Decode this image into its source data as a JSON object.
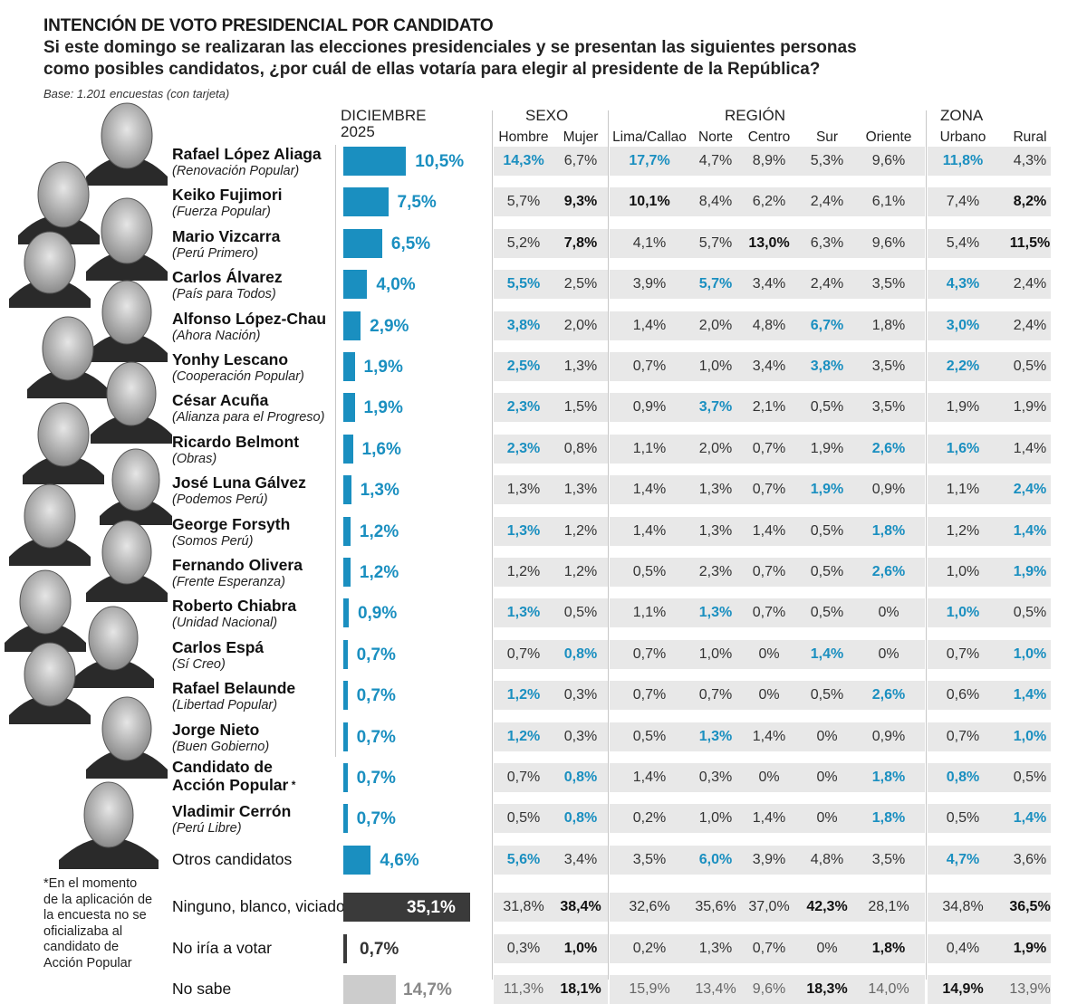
{
  "header": {
    "title": "INTENCIÓN DE VOTO PRESIDENCIAL POR CANDIDATO",
    "subtitle_line1": "Si este domingo se realizaran las elecciones presidenciales y se presentan las siguientes personas",
    "subtitle_line2": "como posibles candidatos, ¿por cuál de ellas votaría para elegir al presidente de la República?",
    "base": "Base: 1.201 encuestas (con tarjeta)"
  },
  "columns": {
    "total_label_1": "DICIEMBRE",
    "total_label_2": "2025",
    "sexo": "SEXO",
    "region": "REGIÓN",
    "zona": "ZONA",
    "sub": [
      "Hombre",
      "Mujer",
      "Lima/Callao",
      "Norte",
      "Centro",
      "Sur",
      "Oriente",
      "Urbano",
      "Rural"
    ]
  },
  "footnote": [
    "*En el momento",
    "de la aplicación de",
    "la encuesta no se",
    "oficializaba al",
    "candidato de",
    "Acción Popular"
  ],
  "colors": {
    "accent": "#1a8fc0",
    "dark": "#3a3a3a",
    "light": "#cccccc",
    "stripe": "#e8e8e8"
  },
  "chart_data": {
    "type": "table",
    "title": "INTENCIÓN DE VOTO PRESIDENCIAL POR CANDIDATO",
    "series_order": [
      "DICIEMBRE 2025",
      "Hombre",
      "Mujer",
      "Lima/Callao",
      "Norte",
      "Centro",
      "Sur",
      "Oriente",
      "Urbano",
      "Rural"
    ],
    "rows": [
      {
        "name": "Rafael López Aliaga",
        "party": "(Renovación Popular)",
        "total": 10.5,
        "total_label": "10,5%",
        "cells": [
          "14,3%",
          "6,7%",
          "17,7%",
          "4,7%",
          "8,9%",
          "5,3%",
          "9,6%",
          "11,8%",
          "4,3%"
        ],
        "hl": [
          0,
          2,
          7
        ]
      },
      {
        "name": "Keiko Fujimori",
        "party": "(Fuerza Popular)",
        "total": 7.5,
        "total_label": "7,5%",
        "cells": [
          "5,7%",
          "9,3%",
          "10,1%",
          "8,4%",
          "6,2%",
          "2,4%",
          "6,1%",
          "7,4%",
          "8,2%"
        ],
        "bk": [
          1,
          2,
          8
        ]
      },
      {
        "name": "Mario Vizcarra",
        "party": "(Perú Primero)",
        "total": 6.5,
        "total_label": "6,5%",
        "cells": [
          "5,2%",
          "7,8%",
          "4,1%",
          "5,7%",
          "13,0%",
          "6,3%",
          "9,6%",
          "5,4%",
          "11,5%"
        ],
        "bk": [
          1,
          4,
          8
        ]
      },
      {
        "name": "Carlos Álvarez",
        "party": "(País para Todos)",
        "total": 4.0,
        "total_label": "4,0%",
        "cells": [
          "5,5%",
          "2,5%",
          "3,9%",
          "5,7%",
          "3,4%",
          "2,4%",
          "3,5%",
          "4,3%",
          "2,4%"
        ],
        "hl": [
          0,
          3,
          7
        ]
      },
      {
        "name": "Alfonso López-Chau",
        "party": "(Ahora Nación)",
        "total": 2.9,
        "total_label": "2,9%",
        "cells": [
          "3,8%",
          "2,0%",
          "1,4%",
          "2,0%",
          "4,8%",
          "6,7%",
          "1,8%",
          "3,0%",
          "2,4%"
        ],
        "hl": [
          0,
          5,
          7
        ]
      },
      {
        "name": "Yonhy Lescano",
        "party": "(Cooperación Popular)",
        "total": 1.9,
        "total_label": "1,9%",
        "cells": [
          "2,5%",
          "1,3%",
          "0,7%",
          "1,0%",
          "3,4%",
          "3,8%",
          "3,5%",
          "2,2%",
          "0,5%"
        ],
        "hl": [
          0,
          5,
          7
        ]
      },
      {
        "name": "César Acuña",
        "party": "(Alianza para el Progreso)",
        "total": 1.9,
        "total_label": "1,9%",
        "cells": [
          "2,3%",
          "1,5%",
          "0,9%",
          "3,7%",
          "2,1%",
          "0,5%",
          "3,5%",
          "1,9%",
          "1,9%"
        ],
        "hl": [
          0,
          3
        ]
      },
      {
        "name": "Ricardo Belmont",
        "party": "(Obras)",
        "total": 1.6,
        "total_label": "1,6%",
        "cells": [
          "2,3%",
          "0,8%",
          "1,1%",
          "2,0%",
          "0,7%",
          "1,9%",
          "2,6%",
          "1,6%",
          "1,4%"
        ],
        "hl": [
          0,
          6,
          7
        ]
      },
      {
        "name": "José Luna Gálvez",
        "party": "(Podemos Perú)",
        "total": 1.3,
        "total_label": "1,3%",
        "cells": [
          "1,3%",
          "1,3%",
          "1,4%",
          "1,3%",
          "0,7%",
          "1,9%",
          "0,9%",
          "1,1%",
          "2,4%"
        ],
        "hl": [
          5,
          8
        ]
      },
      {
        "name": "George Forsyth",
        "party": "(Somos Perú)",
        "total": 1.2,
        "total_label": "1,2%",
        "cells": [
          "1,3%",
          "1,2%",
          "1,4%",
          "1,3%",
          "1,4%",
          "0,5%",
          "1,8%",
          "1,2%",
          "1,4%"
        ],
        "hl": [
          0,
          6,
          8
        ]
      },
      {
        "name": "Fernando Olivera",
        "party": "(Frente Esperanza)",
        "total": 1.2,
        "total_label": "1,2%",
        "cells": [
          "1,2%",
          "1,2%",
          "0,5%",
          "2,3%",
          "0,7%",
          "0,5%",
          "2,6%",
          "1,0%",
          "1,9%"
        ],
        "hl": [
          6,
          8
        ]
      },
      {
        "name": "Roberto Chiabra",
        "party": "(Unidad Nacional)",
        "total": 0.9,
        "total_label": "0,9%",
        "cells": [
          "1,3%",
          "0,5%",
          "1,1%",
          "1,3%",
          "0,7%",
          "0,5%",
          "0%",
          "1,0%",
          "0,5%"
        ],
        "hl": [
          0,
          3,
          7
        ]
      },
      {
        "name": "Carlos Espá",
        "party": "(Sí Creo)",
        "total": 0.7,
        "total_label": "0,7%",
        "cells": [
          "0,7%",
          "0,8%",
          "0,7%",
          "1,0%",
          "0%",
          "1,4%",
          "0%",
          "0,7%",
          "1,0%"
        ],
        "hl": [
          1,
          5,
          8
        ]
      },
      {
        "name": "Rafael Belaunde",
        "party": "(Libertad Popular)",
        "total": 0.7,
        "total_label": "0,7%",
        "cells": [
          "1,2%",
          "0,3%",
          "0,7%",
          "0,7%",
          "0%",
          "0,5%",
          "2,6%",
          "0,6%",
          "1,4%"
        ],
        "hl": [
          0,
          6,
          8
        ]
      },
      {
        "name": "Jorge Nieto",
        "party": "(Buen Gobierno)",
        "total": 0.7,
        "total_label": "0,7%",
        "cells": [
          "1,2%",
          "0,3%",
          "0,5%",
          "1,3%",
          "1,4%",
          "0%",
          "0,9%",
          "0,7%",
          "1,0%"
        ],
        "hl": [
          0,
          3,
          8
        ]
      },
      {
        "name": "Candidato de",
        "name2": "Acción Popular",
        "star": "*",
        "party": "",
        "total": 0.7,
        "total_label": "0,7%",
        "cells": [
          "0,7%",
          "0,8%",
          "1,4%",
          "0,3%",
          "0%",
          "0%",
          "1,8%",
          "0,8%",
          "0,5%"
        ],
        "hl": [
          1,
          6,
          7
        ]
      },
      {
        "name": "Vladimir Cerrón",
        "party": "(Perú Libre)",
        "total": 0.7,
        "total_label": "0,7%",
        "cells": [
          "0,5%",
          "0,8%",
          "0,2%",
          "1,0%",
          "1,4%",
          "0%",
          "1,8%",
          "0,5%",
          "1,4%"
        ],
        "hl": [
          1,
          6,
          8
        ]
      },
      {
        "name": "Otros candidatos",
        "party": "",
        "total": 4.6,
        "total_label": "4,6%",
        "cells": [
          "5,6%",
          "3,4%",
          "3,5%",
          "6,0%",
          "3,9%",
          "4,8%",
          "3,5%",
          "4,7%",
          "3,6%"
        ],
        "hl": [
          0,
          3,
          7
        ]
      },
      {
        "name": "Ninguno, blanco, viciado",
        "party": "",
        "total": 35.1,
        "total_label": "35,1%",
        "style": "dark",
        "cells": [
          "31,8%",
          "38,4%",
          "32,6%",
          "35,6%",
          "37,0%",
          "42,3%",
          "28,1%",
          "34,8%",
          "36,5%"
        ],
        "bk": [
          1,
          5,
          8
        ]
      },
      {
        "name": "No iría a votar",
        "party": "",
        "total": 0.7,
        "total_label": "0,7%",
        "style": "dark",
        "cells": [
          "0,3%",
          "1,0%",
          "0,2%",
          "1,3%",
          "0,7%",
          "0%",
          "1,8%",
          "0,4%",
          "1,9%"
        ],
        "bk": [
          1,
          6,
          8
        ]
      },
      {
        "name": "No sabe",
        "party": "",
        "total": 14.7,
        "total_label": "14,7%",
        "style": "light",
        "cells": [
          "11,3%",
          "18,1%",
          "15,9%",
          "13,4%",
          "9,6%",
          "18,3%",
          "14,0%",
          "14,9%",
          "13,9%"
        ],
        "bk": [
          1,
          5,
          7
        ]
      }
    ]
  }
}
